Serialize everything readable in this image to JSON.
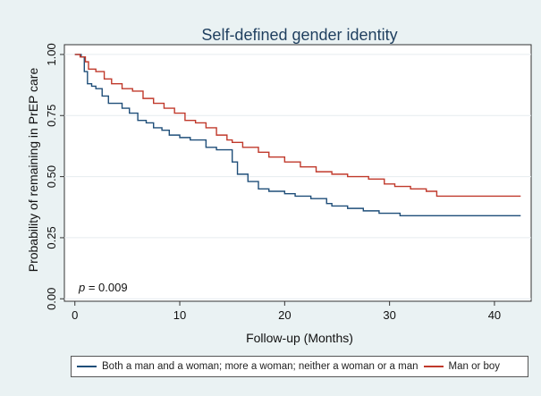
{
  "chart_data": {
    "type": "line",
    "title": "Self-defined gender identity",
    "xlabel": "Follow-up (Months)",
    "ylabel": "Probability of remaining in PrEP care",
    "xlim": [
      -1,
      43.5
    ],
    "ylim": [
      -0.01,
      1.04
    ],
    "xticks": [
      0,
      10,
      20,
      30,
      40
    ],
    "xtick_labels": [
      "0",
      "10",
      "20",
      "30",
      "40"
    ],
    "yticks": [
      0,
      0.25,
      0.5,
      0.75,
      1
    ],
    "ytick_labels": [
      "0.00",
      "0.25",
      "0.50",
      "0.75",
      "1.00"
    ],
    "grid": true,
    "legend_position": "bottom",
    "annotation": {
      "p_label": "p",
      "p_value": " = 0.009"
    },
    "series": [
      {
        "name": "Both a man and a woman; more a woman;  neither a woman or a man",
        "color": "#1f4e79",
        "x": [
          0,
          0.6,
          0.9,
          1.2,
          1.6,
          2.0,
          2.6,
          3.2,
          4.0,
          4.5,
          5.2,
          6.0,
          6.8,
          7.5,
          8.3,
          9.0,
          10.0,
          11.0,
          12.5,
          13.5,
          14.5,
          15.0,
          15.5,
          16.5,
          17.5,
          18.5,
          20.0,
          21.0,
          22.5,
          24.0,
          24.5,
          26.0,
          27.5,
          29.0,
          30.0,
          31.0,
          42.5
        ],
        "y": [
          1.0,
          0.99,
          0.93,
          0.88,
          0.87,
          0.86,
          0.83,
          0.8,
          0.8,
          0.78,
          0.76,
          0.73,
          0.72,
          0.7,
          0.69,
          0.67,
          0.66,
          0.65,
          0.62,
          0.61,
          0.61,
          0.56,
          0.51,
          0.48,
          0.45,
          0.44,
          0.43,
          0.42,
          0.41,
          0.39,
          0.38,
          0.37,
          0.36,
          0.35,
          0.35,
          0.34,
          0.34
        ]
      },
      {
        "name": "Man or boy",
        "color": "#c0392b",
        "x": [
          0,
          0.5,
          1.0,
          1.3,
          2.0,
          2.8,
          3.5,
          4.5,
          5.5,
          6.5,
          7.5,
          8.5,
          9.5,
          10.5,
          11.5,
          12.5,
          13.5,
          14.5,
          15.0,
          16.0,
          17.5,
          18.5,
          20.0,
          21.5,
          23.0,
          24.5,
          26.0,
          28.0,
          29.5,
          30.5,
          32.0,
          33.5,
          34.5,
          42.5
        ],
        "y": [
          1.0,
          0.99,
          0.97,
          0.94,
          0.93,
          0.9,
          0.88,
          0.86,
          0.85,
          0.82,
          0.8,
          0.78,
          0.76,
          0.73,
          0.72,
          0.7,
          0.67,
          0.65,
          0.64,
          0.62,
          0.6,
          0.58,
          0.56,
          0.54,
          0.52,
          0.51,
          0.5,
          0.49,
          0.47,
          0.46,
          0.45,
          0.44,
          0.42,
          0.42
        ]
      }
    ]
  }
}
